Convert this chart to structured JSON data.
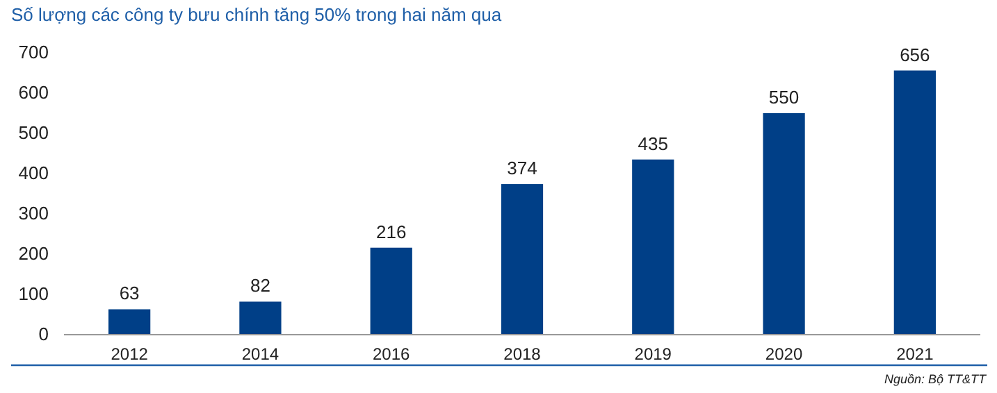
{
  "chart_data": {
    "type": "bar",
    "title": "Số lượng các công ty bưu chính tăng 50% trong hai năm qua",
    "categories": [
      "2012",
      "2014",
      "2016",
      "2018",
      "2019",
      "2020",
      "2021"
    ],
    "values": [
      63,
      82,
      216,
      374,
      435,
      550,
      656
    ],
    "color": "#003f87",
    "ylim": [
      0,
      700
    ],
    "yticks": [
      0,
      100,
      200,
      300,
      400,
      500,
      600,
      700
    ],
    "grid": false,
    "data_labels": true,
    "annotations": [
      "Nguồn: Bộ TT&TT"
    ]
  }
}
